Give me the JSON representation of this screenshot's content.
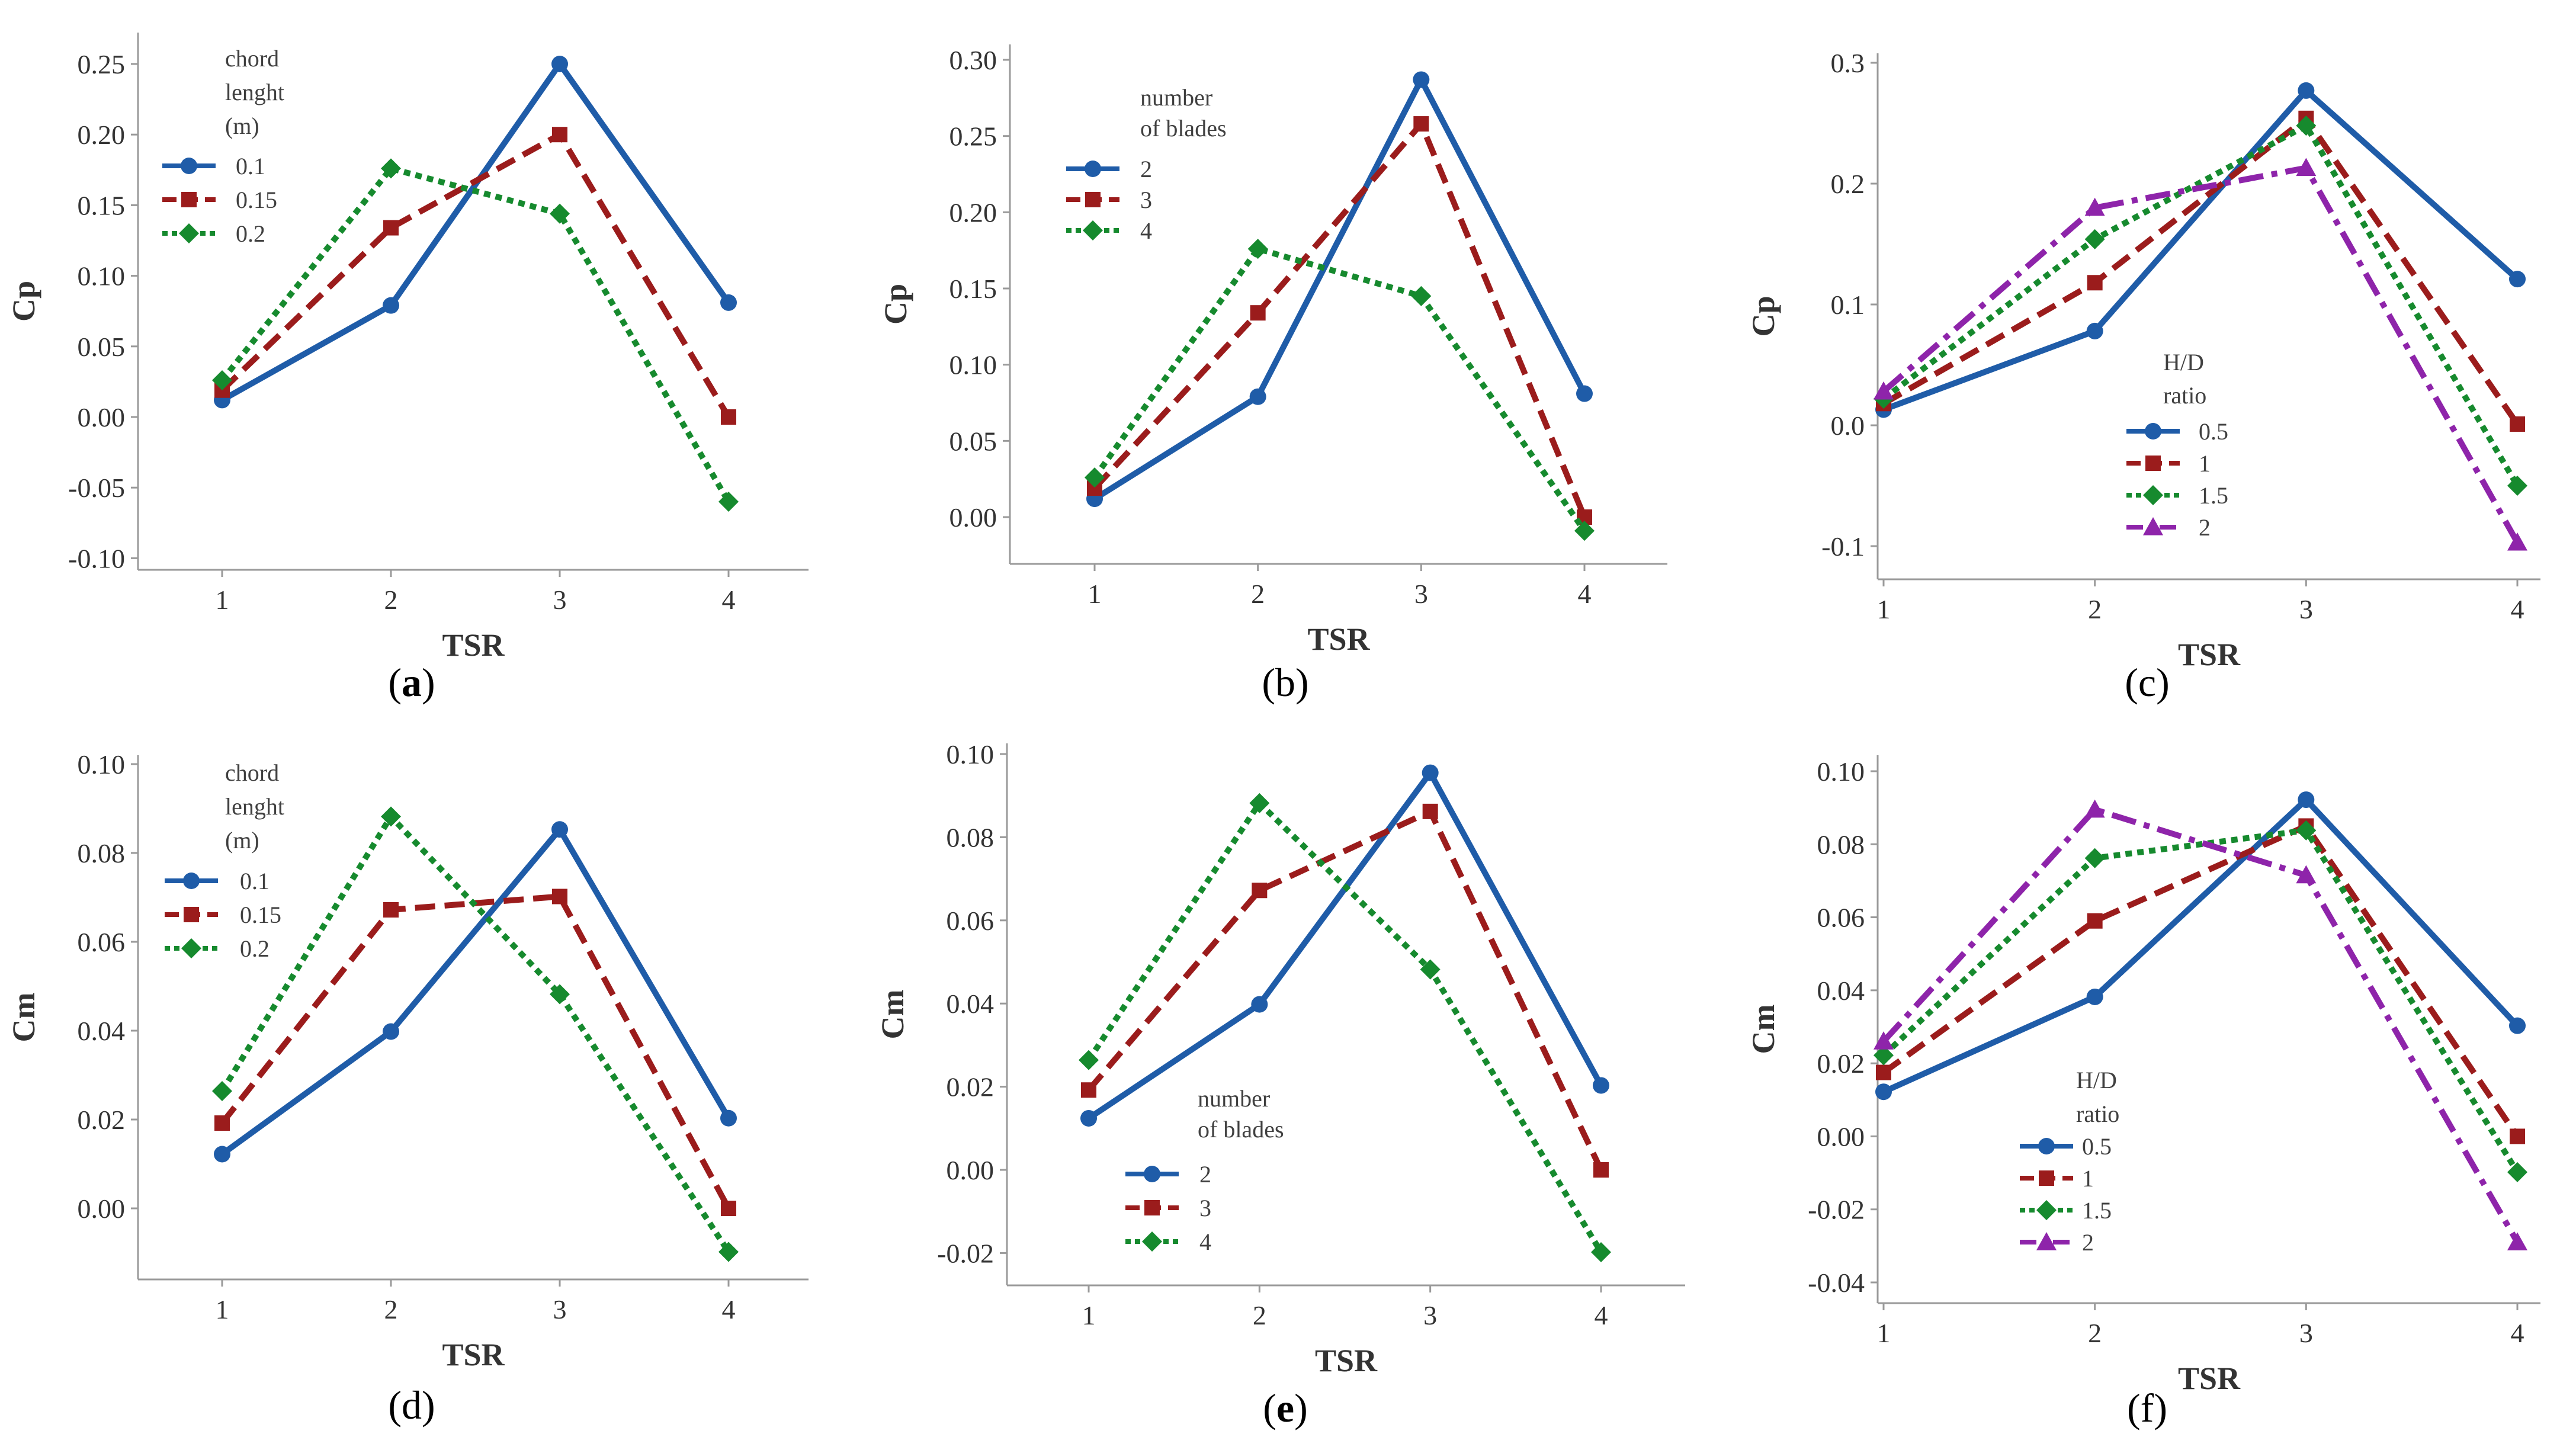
{
  "figure": {
    "panel_count": 6
  },
  "chart_data": [
    {
      "type": "line",
      "panel": "a",
      "caption": {
        "open": "(",
        "letter": "a",
        "close": ")",
        "bold": true
      },
      "title": "",
      "xlabel": "TSR",
      "ylabel": "Cp",
      "x": [
        1,
        2,
        3,
        4
      ],
      "xticks": [
        "1",
        "2",
        "3",
        "4"
      ],
      "ylim": [
        -0.11,
        0.26
      ],
      "yticks": [
        -0.1,
        -0.05,
        0.0,
        0.05,
        0.1,
        0.15,
        0.2,
        0.25
      ],
      "ytick_labels": [
        "-0.10",
        "-0.05",
        "0.00",
        "0.05",
        "0.10",
        "0.15",
        "0.20",
        "0.25"
      ],
      "legend": {
        "title": [
          "chord",
          "lenght",
          "(m)"
        ],
        "placement": "top-left"
      },
      "series": [
        {
          "name": "0.1",
          "color": "#1F5CA8",
          "dash": "solid",
          "marker": "circle",
          "values": [
            0.012,
            0.079,
            0.25,
            0.081
          ]
        },
        {
          "name": "0.15",
          "color": "#9B1C1C",
          "dash": "dash",
          "marker": "square",
          "values": [
            0.019,
            0.134,
            0.2,
            0.0
          ]
        },
        {
          "name": "0.2",
          "color": "#168A2E",
          "dash": "dot",
          "marker": "diamond",
          "values": [
            0.026,
            0.176,
            0.144,
            -0.06
          ]
        }
      ]
    },
    {
      "type": "line",
      "panel": "b",
      "caption": {
        "open": "(",
        "letter": "b",
        "close": ")",
        "bold": false
      },
      "title": "",
      "xlabel": "TSR",
      "ylabel": "Cp",
      "x": [
        1,
        2,
        3,
        4
      ],
      "xticks": [
        "1",
        "2",
        "3",
        "4"
      ],
      "ylim": [
        -0.03,
        0.3
      ],
      "yticks": [
        0.0,
        0.05,
        0.1,
        0.15,
        0.2,
        0.25,
        0.3
      ],
      "ytick_labels": [
        "0.00",
        "0.05",
        "0.10",
        "0.15",
        "0.20",
        "0.25",
        "0.30"
      ],
      "legend": {
        "title": [
          "number",
          "of blades"
        ],
        "placement": "top-left"
      },
      "series": [
        {
          "name": "2",
          "color": "#1F5CA8",
          "dash": "solid",
          "marker": "circle",
          "values": [
            0.012,
            0.079,
            0.287,
            0.081
          ]
        },
        {
          "name": "3",
          "color": "#9B1C1C",
          "dash": "dash",
          "marker": "square",
          "values": [
            0.019,
            0.134,
            0.258,
            0.0
          ]
        },
        {
          "name": "4",
          "color": "#168A2E",
          "dash": "dot",
          "marker": "diamond",
          "values": [
            0.026,
            0.176,
            0.145,
            -0.009
          ]
        }
      ]
    },
    {
      "type": "line",
      "panel": "c",
      "caption": {
        "open": "(",
        "letter": "c",
        "close": ")",
        "bold": false
      },
      "title": "",
      "xlabel": "TSR",
      "ylabel": "Cp",
      "x": [
        1,
        2,
        3,
        4
      ],
      "xticks": [
        "1",
        "2",
        "3",
        "4"
      ],
      "ylim": [
        -0.12,
        0.3
      ],
      "yticks": [
        -0.1,
        0.0,
        0.1,
        0.2,
        0.3
      ],
      "ytick_labels": [
        "-0.1",
        "0.0",
        "0.1",
        "0.2",
        "0.3"
      ],
      "legend": {
        "title": [
          "H/D",
          "ratio"
        ],
        "placement": "bottom-center"
      },
      "series": [
        {
          "name": "0.5",
          "color": "#1F5CA8",
          "dash": "solid",
          "marker": "circle",
          "values": [
            0.013,
            0.078,
            0.277,
            0.121
          ]
        },
        {
          "name": "1",
          "color": "#9B1C1C",
          "dash": "dash",
          "marker": "square",
          "values": [
            0.018,
            0.118,
            0.254,
            0.001
          ]
        },
        {
          "name": "1.5",
          "color": "#168A2E",
          "dash": "dot",
          "marker": "diamond",
          "values": [
            0.022,
            0.154,
            0.248,
            -0.05
          ]
        },
        {
          "name": "2",
          "color": "#8E24AA",
          "dash": "dashdot",
          "marker": "triangle",
          "values": [
            0.028,
            0.18,
            0.213,
            -0.097
          ]
        }
      ]
    },
    {
      "type": "line",
      "panel": "d",
      "caption": {
        "open": "(",
        "letter": "d",
        "close": ")",
        "bold": false
      },
      "title": "",
      "xlabel": "TSR",
      "ylabel": "Cm",
      "x": [
        1,
        2,
        3,
        4
      ],
      "xticks": [
        "1",
        "2",
        "3",
        "4"
      ],
      "ylim": [
        -0.016,
        0.1
      ],
      "yticks": [
        0.0,
        0.02,
        0.04,
        0.06,
        0.08,
        0.1
      ],
      "ytick_labels": [
        "0.00",
        "0.02",
        "0.04",
        "0.06",
        "0.08",
        "0.10"
      ],
      "legend": {
        "title": [
          "chord",
          "lenght",
          "(m)"
        ],
        "placement": "top-left"
      },
      "series": [
        {
          "name": "0.1",
          "color": "#1F5CA8",
          "dash": "solid",
          "marker": "circle",
          "values": [
            0.0122,
            0.0398,
            0.0853,
            0.0203
          ]
        },
        {
          "name": "0.15",
          "color": "#9B1C1C",
          "dash": "dash",
          "marker": "square",
          "values": [
            0.0192,
            0.0672,
            0.0702,
            0.0
          ]
        },
        {
          "name": "0.2",
          "color": "#168A2E",
          "dash": "dot",
          "marker": "diamond",
          "values": [
            0.0264,
            0.0882,
            0.0482,
            -0.0098
          ]
        }
      ]
    },
    {
      "type": "line",
      "panel": "e",
      "caption": {
        "open": "(",
        "letter": "e",
        "close": ")",
        "bold": true
      },
      "title": "",
      "xlabel": "TSR",
      "ylabel": "Cm",
      "x": [
        1,
        2,
        3,
        4
      ],
      "xticks": [
        "1",
        "2",
        "3",
        "4"
      ],
      "ylim": [
        -0.027,
        0.1
      ],
      "yticks": [
        -0.02,
        0.0,
        0.02,
        0.04,
        0.06,
        0.08,
        0.1
      ],
      "ytick_labels": [
        "-0.02",
        "0.00",
        "0.02",
        "0.04",
        "0.06",
        "0.08",
        "0.10"
      ],
      "legend": {
        "title": [
          "number",
          "of blades"
        ],
        "placement": "bottom-center"
      },
      "series": [
        {
          "name": "2",
          "color": "#1F5CA8",
          "dash": "solid",
          "marker": "circle",
          "values": [
            0.0124,
            0.0398,
            0.0955,
            0.0203
          ]
        },
        {
          "name": "3",
          "color": "#9B1C1C",
          "dash": "dash",
          "marker": "square",
          "values": [
            0.0192,
            0.0672,
            0.0862,
            0.0
          ]
        },
        {
          "name": "4",
          "color": "#168A2E",
          "dash": "dot",
          "marker": "diamond",
          "values": [
            0.0264,
            0.0882,
            0.0482,
            -0.0198
          ]
        }
      ]
    },
    {
      "type": "line",
      "panel": "f",
      "caption": {
        "open": "(",
        "letter": "f",
        "close": ")",
        "bold": false
      },
      "title": "",
      "xlabel": "TSR",
      "ylabel": "Cm",
      "x": [
        1,
        2,
        3,
        4
      ],
      "xticks": [
        "1",
        "2",
        "3",
        "4"
      ],
      "ylim": [
        -0.041,
        0.101
      ],
      "yticks": [
        -0.04,
        -0.02,
        0.0,
        0.02,
        0.04,
        0.06,
        0.08,
        0.1
      ],
      "ytick_labels": [
        "-0.04",
        "-0.02",
        "0.00",
        "0.02",
        "0.04",
        "0.06",
        "0.08",
        "0.10"
      ],
      "legend": {
        "title": [
          "H/D",
          "ratio"
        ],
        "placement": "bottom-center"
      },
      "series": [
        {
          "name": "0.5",
          "color": "#1F5CA8",
          "dash": "solid",
          "marker": "circle",
          "values": [
            0.0122,
            0.0382,
            0.0922,
            0.0303
          ]
        },
        {
          "name": "1",
          "color": "#9B1C1C",
          "dash": "dash",
          "marker": "square",
          "values": [
            0.0175,
            0.059,
            0.085,
            0.0
          ]
        },
        {
          "name": "1.5",
          "color": "#168A2E",
          "dash": "dot",
          "marker": "diamond",
          "values": [
            0.0222,
            0.0762,
            0.0838,
            -0.0098
          ]
        },
        {
          "name": "2",
          "color": "#8E24AA",
          "dash": "dashdot",
          "marker": "triangle",
          "values": [
            0.026,
            0.0895,
            0.0715,
            -0.029
          ]
        }
      ]
    }
  ]
}
